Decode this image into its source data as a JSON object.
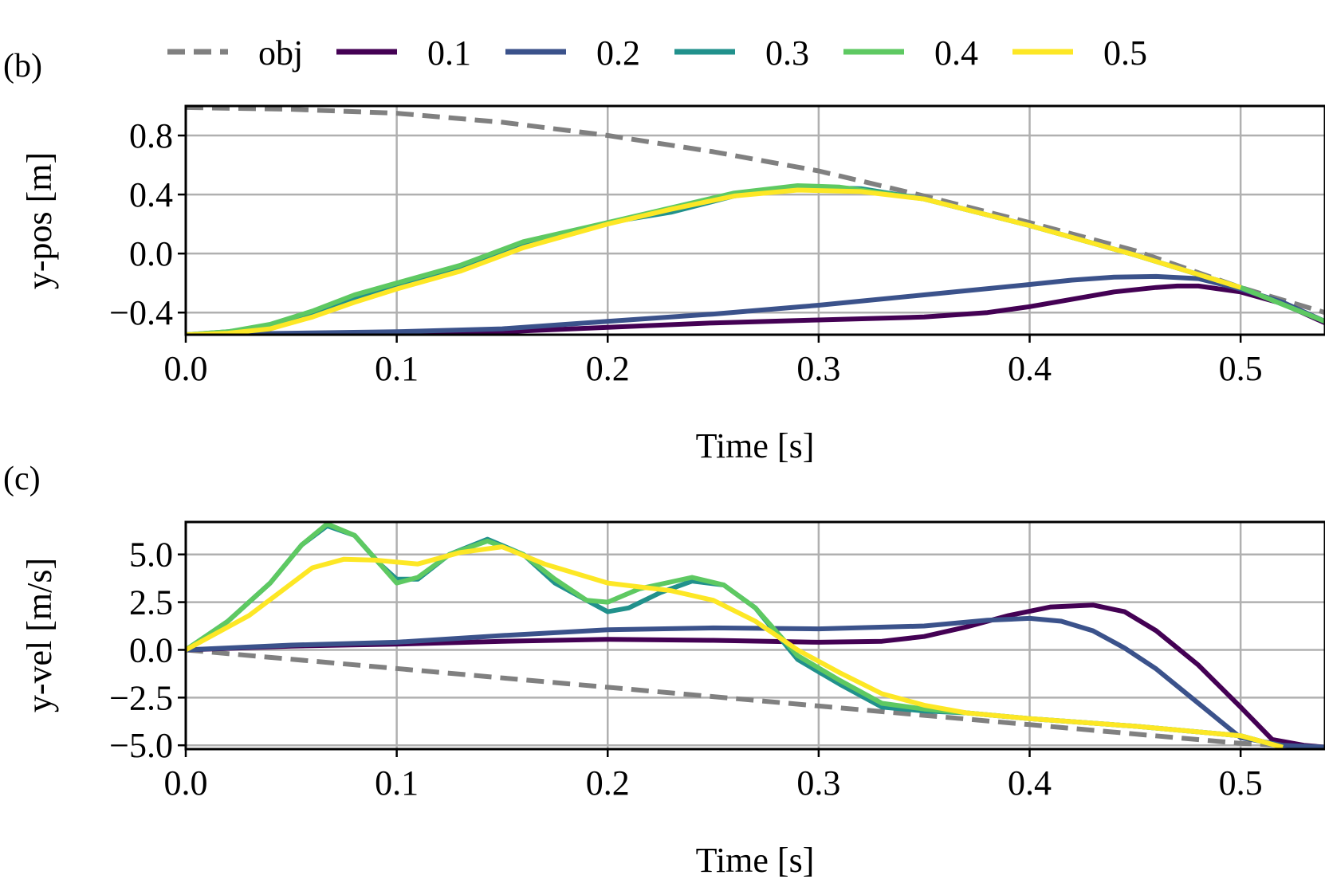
{
  "legend": {
    "entries": [
      {
        "label": "obj",
        "color": "#808080",
        "dashed": true
      },
      {
        "label": "0.1",
        "color": "#440154",
        "dashed": false
      },
      {
        "label": "0.2",
        "color": "#3b528b",
        "dashed": false
      },
      {
        "label": "0.3",
        "color": "#21918c",
        "dashed": false
      },
      {
        "label": "0.4",
        "color": "#5ec962",
        "dashed": false
      },
      {
        "label": "0.5",
        "color": "#fde725",
        "dashed": false
      }
    ],
    "placement": "top"
  },
  "chart_data": [
    {
      "type": "line",
      "panel_label": "(b)",
      "xlabel": "Time [s]",
      "ylabel": "y-pos [m]",
      "xlim": [
        0.0,
        0.54
      ],
      "ylim": [
        -0.55,
        1.0
      ],
      "xticks": [
        0.0,
        0.1,
        0.2,
        0.3,
        0.4,
        0.5
      ],
      "xtick_labels": [
        "0.0",
        "0.1",
        "0.2",
        "0.3",
        "0.4",
        "0.5"
      ],
      "yticks": [
        -0.4,
        0.0,
        0.4,
        0.8
      ],
      "ytick_labels": [
        "−0.4",
        "0.0",
        "0.4",
        "0.8"
      ],
      "grid": true,
      "series": [
        {
          "name": "obj",
          "color": "#808080",
          "dashed": true,
          "x": [
            0,
            0.05,
            0.1,
            0.15,
            0.2,
            0.25,
            0.3,
            0.35,
            0.4,
            0.45,
            0.5,
            0.54
          ],
          "y": [
            0.99,
            0.978,
            0.951,
            0.89,
            0.8,
            0.69,
            0.56,
            0.39,
            0.21,
            0.02,
            -0.23,
            -0.4
          ]
        },
        {
          "name": "0.1",
          "color": "#440154",
          "dashed": false,
          "x": [
            0,
            0.05,
            0.1,
            0.15,
            0.2,
            0.25,
            0.3,
            0.35,
            0.38,
            0.4,
            0.42,
            0.44,
            0.46,
            0.47,
            0.48,
            0.5,
            0.52,
            0.54
          ],
          "y": [
            -0.55,
            -0.55,
            -0.55,
            -0.53,
            -0.5,
            -0.47,
            -0.45,
            -0.43,
            -0.4,
            -0.36,
            -0.31,
            -0.26,
            -0.23,
            -0.22,
            -0.22,
            -0.26,
            -0.34,
            -0.47
          ]
        },
        {
          "name": "0.2",
          "color": "#3b528b",
          "dashed": false,
          "x": [
            0,
            0.05,
            0.1,
            0.15,
            0.2,
            0.25,
            0.3,
            0.35,
            0.4,
            0.42,
            0.44,
            0.46,
            0.48,
            0.5,
            0.52,
            0.54
          ],
          "y": [
            -0.55,
            -0.54,
            -0.53,
            -0.51,
            -0.46,
            -0.41,
            -0.35,
            -0.28,
            -0.21,
            -0.18,
            -0.16,
            -0.155,
            -0.17,
            -0.24,
            -0.33,
            -0.46
          ]
        },
        {
          "name": "0.3",
          "color": "#21918c",
          "dashed": false,
          "x": [
            0,
            0.02,
            0.04,
            0.06,
            0.08,
            0.1,
            0.13,
            0.16,
            0.2,
            0.23,
            0.26,
            0.29,
            0.32,
            0.35,
            0.4,
            0.45,
            0.5,
            0.54
          ],
          "y": [
            -0.55,
            -0.53,
            -0.49,
            -0.4,
            -0.3,
            -0.22,
            -0.1,
            0.06,
            0.21,
            0.28,
            0.39,
            0.45,
            0.44,
            0.37,
            0.19,
            -0.01,
            -0.23,
            -0.46
          ]
        },
        {
          "name": "0.4",
          "color": "#5ec962",
          "dashed": false,
          "x": [
            0,
            0.02,
            0.04,
            0.06,
            0.08,
            0.1,
            0.13,
            0.16,
            0.2,
            0.23,
            0.26,
            0.29,
            0.31,
            0.35,
            0.4,
            0.45,
            0.5,
            0.54
          ],
          "y": [
            -0.55,
            -0.53,
            -0.48,
            -0.39,
            -0.28,
            -0.2,
            -0.08,
            0.08,
            0.21,
            0.31,
            0.41,
            0.46,
            0.45,
            0.37,
            0.19,
            -0.01,
            -0.23,
            -0.46
          ]
        },
        {
          "name": "0.5",
          "color": "#fde725",
          "dashed": false,
          "x": [
            0,
            0.02,
            0.04,
            0.06,
            0.08,
            0.1,
            0.13,
            0.16,
            0.2,
            0.23,
            0.26,
            0.29,
            0.32,
            0.35,
            0.4,
            0.45,
            0.5
          ],
          "y": [
            -0.55,
            -0.54,
            -0.51,
            -0.43,
            -0.33,
            -0.24,
            -0.12,
            0.04,
            0.2,
            0.3,
            0.39,
            0.43,
            0.42,
            0.37,
            0.19,
            -0.01,
            -0.23
          ]
        }
      ]
    },
    {
      "type": "line",
      "panel_label": "(c)",
      "xlabel": "Time [s]",
      "ylabel": "y-vel [m/s]",
      "xlim": [
        0.0,
        0.54
      ],
      "ylim": [
        -5.2,
        6.7
      ],
      "xticks": [
        0.0,
        0.1,
        0.2,
        0.3,
        0.4,
        0.5
      ],
      "xtick_labels": [
        "0.0",
        "0.1",
        "0.2",
        "0.3",
        "0.4",
        "0.5"
      ],
      "yticks": [
        -5.0,
        -2.5,
        0.0,
        2.5,
        5.0
      ],
      "ytick_labels": [
        "−5.0",
        "−2.5",
        "0.0",
        "2.5",
        "5.0"
      ],
      "grid": true,
      "series": [
        {
          "name": "obj",
          "color": "#808080",
          "dashed": true,
          "x": [
            0,
            0.1,
            0.2,
            0.3,
            0.4,
            0.5,
            0.54
          ],
          "y": [
            0,
            -0.98,
            -1.96,
            -2.94,
            -3.92,
            -4.9,
            -5.1
          ]
        },
        {
          "name": "0.1",
          "color": "#440154",
          "dashed": false,
          "x": [
            0,
            0.05,
            0.1,
            0.15,
            0.2,
            0.25,
            0.3,
            0.33,
            0.35,
            0.37,
            0.39,
            0.41,
            0.43,
            0.445,
            0.46,
            0.48,
            0.5,
            0.515,
            0.53,
            0.54
          ],
          "y": [
            0,
            0.2,
            0.3,
            0.45,
            0.55,
            0.5,
            0.4,
            0.45,
            0.7,
            1.2,
            1.8,
            2.25,
            2.35,
            2.0,
            1.0,
            -0.8,
            -3.0,
            -4.7,
            -5.0,
            -5.1
          ]
        },
        {
          "name": "0.2",
          "color": "#3b528b",
          "dashed": false,
          "x": [
            0,
            0.05,
            0.1,
            0.15,
            0.2,
            0.25,
            0.3,
            0.35,
            0.38,
            0.4,
            0.415,
            0.43,
            0.445,
            0.46,
            0.48,
            0.5,
            0.52,
            0.54
          ],
          "y": [
            0,
            0.25,
            0.4,
            0.75,
            1.05,
            1.15,
            1.1,
            1.25,
            1.55,
            1.65,
            1.5,
            1.0,
            0.1,
            -1.0,
            -2.8,
            -4.6,
            -5.0,
            -5.1
          ]
        },
        {
          "name": "0.3",
          "color": "#21918c",
          "dashed": false,
          "x": [
            0,
            0.02,
            0.04,
            0.055,
            0.067,
            0.08,
            0.092,
            0.1,
            0.11,
            0.125,
            0.143,
            0.16,
            0.175,
            0.19,
            0.2,
            0.21,
            0.225,
            0.24,
            0.255,
            0.27,
            0.29,
            0.31,
            0.33,
            0.35,
            0.37,
            0.4,
            0.45,
            0.5,
            0.52
          ],
          "y": [
            0,
            1.5,
            3.5,
            5.5,
            6.5,
            6.0,
            4.5,
            3.7,
            3.7,
            5.0,
            5.8,
            5.0,
            3.5,
            2.6,
            2.0,
            2.2,
            3.0,
            3.6,
            3.4,
            2.2,
            -0.5,
            -1.8,
            -3.0,
            -3.2,
            -3.3,
            -3.6,
            -4.0,
            -4.5,
            -5.1
          ]
        },
        {
          "name": "0.4",
          "color": "#5ec962",
          "dashed": false,
          "x": [
            0,
            0.02,
            0.04,
            0.055,
            0.067,
            0.08,
            0.092,
            0.1,
            0.11,
            0.125,
            0.143,
            0.16,
            0.175,
            0.19,
            0.2,
            0.215,
            0.24,
            0.255,
            0.27,
            0.29,
            0.31,
            0.33,
            0.35,
            0.37,
            0.4,
            0.45,
            0.5,
            0.52
          ],
          "y": [
            0,
            1.5,
            3.5,
            5.5,
            6.6,
            6.0,
            4.5,
            3.5,
            3.8,
            5.0,
            5.7,
            5.0,
            3.7,
            2.6,
            2.5,
            3.2,
            3.8,
            3.4,
            2.2,
            -0.3,
            -1.6,
            -2.8,
            -3.1,
            -3.3,
            -3.6,
            -4.0,
            -4.5,
            -5.1
          ]
        },
        {
          "name": "0.5",
          "color": "#fde725",
          "dashed": false,
          "x": [
            0,
            0.03,
            0.06,
            0.075,
            0.09,
            0.11,
            0.13,
            0.15,
            0.17,
            0.2,
            0.23,
            0.25,
            0.27,
            0.29,
            0.31,
            0.33,
            0.35,
            0.37,
            0.4,
            0.45,
            0.5,
            0.52
          ],
          "y": [
            0,
            1.8,
            4.3,
            4.75,
            4.7,
            4.5,
            5.1,
            5.4,
            4.5,
            3.5,
            3.1,
            2.6,
            1.5,
            0.0,
            -1.2,
            -2.3,
            -2.9,
            -3.3,
            -3.6,
            -4.0,
            -4.5,
            -5.1
          ]
        }
      ]
    }
  ]
}
